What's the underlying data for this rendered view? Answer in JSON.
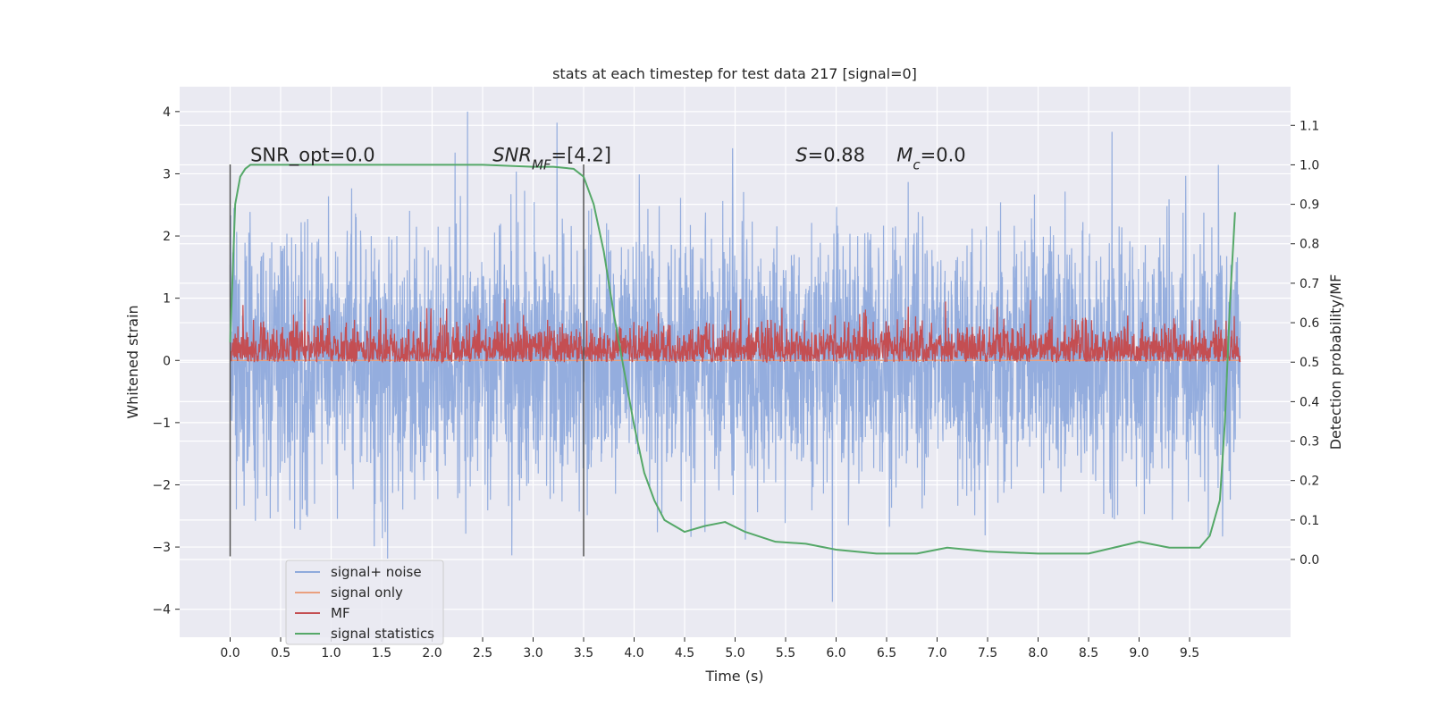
{
  "chart_data": {
    "type": "line",
    "title": "stats at each timestep for test data 217 [signal=0]",
    "xlabel": "Time (s)",
    "ylabel_left": "Whitened strain",
    "ylabel_right": "Detection probability/MF",
    "xlim": [
      -0.5,
      10.5
    ],
    "ylim_left": [
      -4.45,
      4.4
    ],
    "ylim_right": [
      -0.197,
      1.198
    ],
    "x_ticks": [
      0.0,
      0.5,
      1.0,
      1.5,
      2.0,
      2.5,
      3.0,
      3.5,
      4.0,
      4.5,
      5.0,
      5.5,
      6.0,
      6.5,
      7.0,
      7.5,
      8.0,
      8.5,
      9.0,
      9.5
    ],
    "x_tick_labels": [
      "0.0",
      "0.5",
      "1.0",
      "1.5",
      "2.0",
      "2.5",
      "3.0",
      "3.5",
      "4.0",
      "4.5",
      "5.0",
      "5.5",
      "6.0",
      "6.5",
      "7.0",
      "7.5",
      "8.0",
      "8.5",
      "9.0",
      "9.5"
    ],
    "y_left_ticks": [
      -4,
      -3,
      -2,
      -1,
      0,
      1,
      2,
      3,
      4
    ],
    "y_left_tick_labels": [
      "−4",
      "−3",
      "−2",
      "−1",
      "0",
      "1",
      "2",
      "3",
      "4"
    ],
    "y_right_ticks": [
      0.0,
      0.1,
      0.2,
      0.3,
      0.4,
      0.5,
      0.6,
      0.7,
      0.8,
      0.9,
      1.0,
      1.1
    ],
    "y_right_tick_labels": [
      "0.0",
      "0.1",
      "0.2",
      "0.3",
      "0.4",
      "0.5",
      "0.6",
      "0.7",
      "0.8",
      "0.9",
      "1.0",
      "1.1"
    ],
    "grid": true,
    "legend_placement": "lower-left",
    "series": [
      {
        "name": "signal+ noise",
        "axis": "left",
        "color": "#8faadc",
        "description_range": [
          -4.1,
          4.0
        ],
        "x_range": [
          0.0,
          10.0
        ],
        "typical_std": 1.0
      },
      {
        "name": "signal only",
        "axis": "left",
        "color": "#eaa07f",
        "x": [
          0.0,
          10.0
        ],
        "y": [
          0.0,
          0.0
        ]
      },
      {
        "name": "MF",
        "axis": "right",
        "color": "#c44e52",
        "x_range": [
          0.0,
          10.0
        ],
        "baseline": 0.5,
        "typical_range": [
          0.5,
          0.62
        ],
        "peak": 0.66
      },
      {
        "name": "signal statistics",
        "axis": "right",
        "color": "#55a868",
        "x": [
          0.0,
          0.05,
          0.1,
          0.15,
          0.2,
          0.3,
          0.5,
          1.0,
          1.5,
          2.0,
          2.5,
          3.0,
          3.2,
          3.4,
          3.5,
          3.6,
          3.7,
          3.8,
          3.9,
          4.0,
          4.1,
          4.2,
          4.3,
          4.5,
          4.7,
          4.9,
          5.1,
          5.4,
          5.7,
          6.0,
          6.4,
          6.8,
          7.1,
          7.5,
          8.0,
          8.5,
          9.0,
          9.3,
          9.6,
          9.7,
          9.8,
          9.85,
          9.9,
          9.95
        ],
        "y": [
          0.55,
          0.9,
          0.97,
          0.99,
          1.0,
          1.0,
          1.0,
          1.0,
          1.0,
          1.0,
          1.0,
          0.995,
          0.995,
          0.99,
          0.97,
          0.9,
          0.78,
          0.62,
          0.48,
          0.34,
          0.22,
          0.15,
          0.1,
          0.07,
          0.085,
          0.095,
          0.07,
          0.045,
          0.04,
          0.025,
          0.015,
          0.015,
          0.03,
          0.02,
          0.015,
          0.015,
          0.045,
          0.03,
          0.03,
          0.06,
          0.15,
          0.35,
          0.65,
          0.88
        ]
      }
    ],
    "vertical_lines": [
      {
        "x": 0.0,
        "color": "#555555"
      },
      {
        "x": 3.5,
        "color": "#555555"
      }
    ],
    "annotations": [
      {
        "id": "snr-opt",
        "x": 0.2,
        "y": 3.2,
        "parts": [
          {
            "t": "SNR_opt=0.0"
          }
        ]
      },
      {
        "id": "snr-mf",
        "x": 2.6,
        "y": 3.2,
        "parts": [
          {
            "t": "SNR",
            "i": true
          },
          {
            "t": "MF",
            "i": true,
            "sub": true
          },
          {
            "t": "=[4.2]"
          }
        ]
      },
      {
        "id": "s-value",
        "x": 5.6,
        "y": 3.2,
        "parts": [
          {
            "t": "S",
            "i": true
          },
          {
            "t": "=0.88"
          }
        ]
      },
      {
        "id": "mc-value",
        "x": 6.6,
        "y": 3.2,
        "parts": [
          {
            "t": "M",
            "i": true
          },
          {
            "t": "c",
            "i": true,
            "sub": true
          },
          {
            "t": "=0.0"
          }
        ]
      }
    ]
  }
}
